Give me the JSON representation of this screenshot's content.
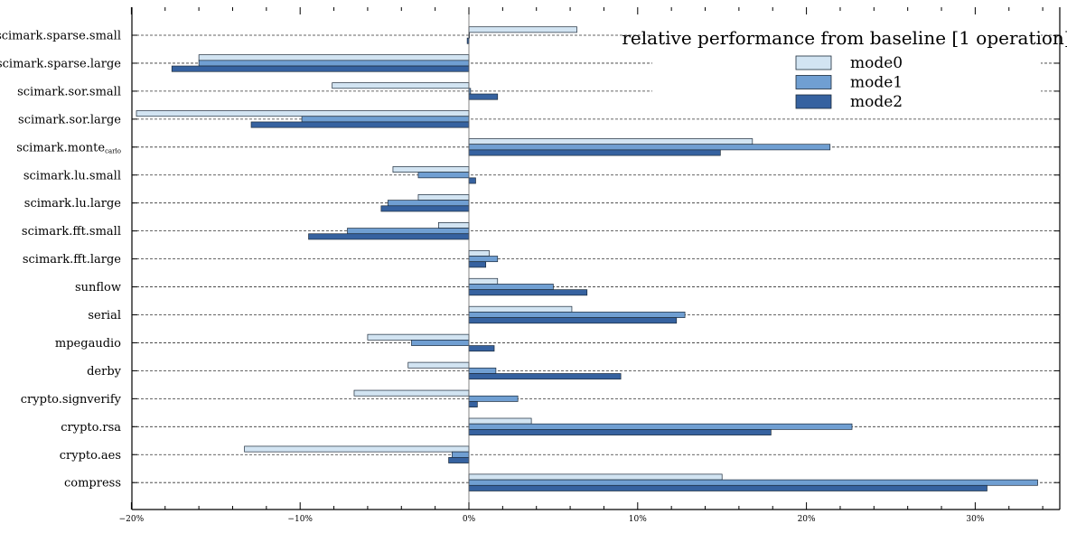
{
  "chart_data": {
    "type": "bar",
    "orientation": "horizontal",
    "title": "",
    "xlabel": "",
    "ylabel": "",
    "legend_title": "relative performance from baseline [1 operation]",
    "legend_position": "top-right",
    "xlim": [
      -20,
      35
    ],
    "xticks": [
      -20,
      -10,
      0,
      10,
      20,
      30
    ],
    "xtick_labels": [
      "−20%",
      "−10%",
      "0%",
      "10%",
      "20%",
      "30%"
    ],
    "grid": "horizontal dashed",
    "categories": [
      "scimark.sparse.small",
      "scimark.sparse.large",
      "scimark.sor.small",
      "scimark.sor.large",
      "scimark.monte",
      "scimark.lu.small",
      "scimark.lu.large",
      "scimark.fft.small",
      "scimark.fft.large",
      "sunflow",
      "serial",
      "mpegaudio",
      "derby",
      "crypto.signverify",
      "crypto.rsa",
      "crypto.aes",
      "compress"
    ],
    "category_subscripts": {
      "scimark.monte": "carlo"
    },
    "series": [
      {
        "name": "mode0",
        "color": "#d2e4f2",
        "values": [
          6.4,
          -16.0,
          -8.1,
          -19.7,
          16.8,
          -4.5,
          -3.0,
          -1.8,
          1.2,
          1.7,
          6.1,
          -6.0,
          -3.6,
          -6.8,
          3.7,
          -13.3,
          15.0
        ]
      },
      {
        "name": "mode1",
        "color": "#709fd2",
        "values": [
          0.0,
          -16.0,
          0.1,
          -9.9,
          21.4,
          -3.0,
          -4.8,
          -7.2,
          1.7,
          5.0,
          12.8,
          -3.4,
          1.6,
          2.9,
          22.7,
          -1.0,
          33.7
        ]
      },
      {
        "name": "mode2",
        "color": "#3662a0",
        "values": [
          -0.1,
          -17.6,
          1.7,
          -12.9,
          14.9,
          0.4,
          -5.2,
          -9.5,
          1.0,
          7.0,
          12.3,
          1.5,
          9.0,
          0.5,
          17.9,
          -1.2,
          30.7
        ]
      }
    ]
  }
}
